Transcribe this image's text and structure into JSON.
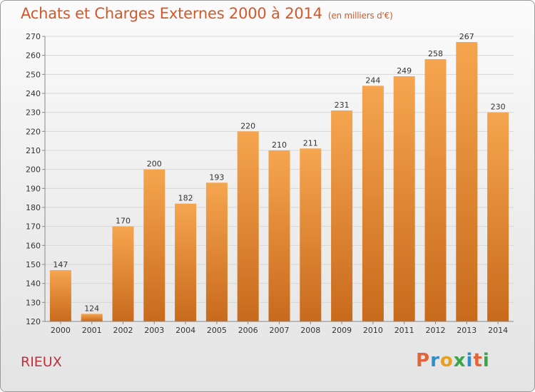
{
  "header": {
    "title": "Achats et Charges Externes 2000 à 2014",
    "subtitle": "(en milliers d'€)"
  },
  "footer": {
    "commune": "RIEUX",
    "logo_text": "Proxiti"
  },
  "colors": {
    "bar_top": "#f6a54f",
    "bar_bottom": "#c86a1c",
    "title": "#d0592a",
    "commune": "#c2303b",
    "logo_letters": [
      "#e0663a",
      "#2f8fc9",
      "#e8a020",
      "#3aa64a",
      "#2f8fc9",
      "#e0663a",
      "#3aa64a"
    ]
  },
  "chart_data": {
    "type": "bar",
    "title": "Achats et Charges Externes 2000 à 2014",
    "subtitle": "(en milliers d'€)",
    "categories": [
      "2000",
      "2001",
      "2002",
      "2003",
      "2004",
      "2005",
      "2006",
      "2007",
      "2008",
      "2009",
      "2010",
      "2011",
      "2012",
      "2013",
      "2014"
    ],
    "values": [
      147,
      124,
      170,
      200,
      182,
      193,
      220,
      210,
      211,
      231,
      244,
      249,
      258,
      267,
      230
    ],
    "ylim": [
      120,
      270
    ],
    "yticks": [
      120,
      130,
      140,
      150,
      160,
      170,
      180,
      190,
      200,
      210,
      220,
      230,
      240,
      250,
      260,
      270
    ],
    "grid": true,
    "legend": "none"
  }
}
